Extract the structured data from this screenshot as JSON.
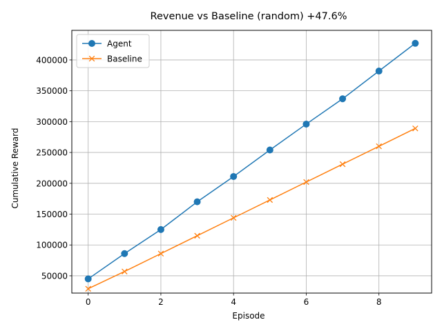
{
  "chart_data": {
    "type": "line",
    "title": "Revenue vs Baseline (random) +47.6%",
    "xlabel": "Episode",
    "ylabel": "Cumulative Reward",
    "x": [
      0,
      1,
      2,
      3,
      4,
      5,
      6,
      7,
      8,
      9
    ],
    "xlim": [
      -0.45,
      9.45
    ],
    "ylim": [
      22000,
      448000
    ],
    "xticks": [
      0,
      2,
      4,
      6,
      8
    ],
    "yticks": [
      50000,
      100000,
      150000,
      200000,
      250000,
      300000,
      350000,
      400000
    ],
    "grid": true,
    "legend_position": "upper-left",
    "series": [
      {
        "name": "Agent",
        "marker": "circle",
        "color": "#1f77b4",
        "values": [
          45000,
          86000,
          125000,
          170000,
          211000,
          254000,
          296000,
          337000,
          382000,
          427000
        ]
      },
      {
        "name": "Baseline",
        "marker": "x",
        "color": "#ff7f0e",
        "values": [
          29000,
          57000,
          86000,
          115000,
          144000,
          173000,
          202000,
          231000,
          260000,
          289000
        ]
      }
    ]
  }
}
